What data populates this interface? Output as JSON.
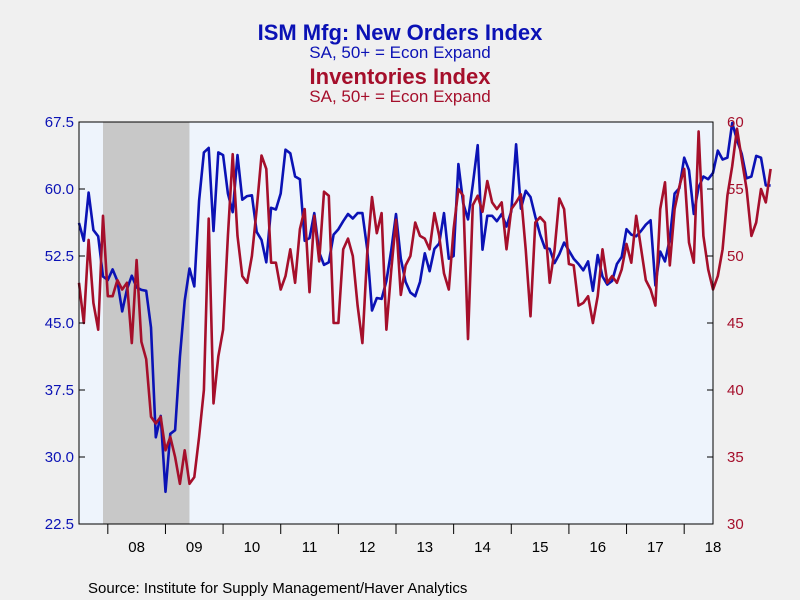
{
  "chart_data": {
    "type": "line",
    "titles": [
      {
        "text": "ISM Mfg: New Orders Index",
        "color": "#0b12b5"
      },
      {
        "text": "SA, 50+ = Econ Expand",
        "color": "#0b12b5"
      },
      {
        "text": "Inventories Index",
        "color": "#a50f2b"
      },
      {
        "text": "SA, 50+ = Econ Expand",
        "color": "#a50f2b"
      }
    ],
    "source": "Source:  Institute for Supply Management/Haver Analytics",
    "x_range": [
      2007.5,
      2018.5
    ],
    "x_tick_labels": [
      "08",
      "09",
      "10",
      "11",
      "12",
      "13",
      "14",
      "15",
      "16",
      "17",
      "18"
    ],
    "y_left": {
      "range": [
        22.5,
        67.5
      ],
      "ticks": [
        "22.5",
        "30.0",
        "37.5",
        "45.0",
        "52.5",
        "60.0",
        "67.5"
      ],
      "color": "#0b12b5"
    },
    "y_right": {
      "range": [
        30,
        60
      ],
      "ticks": [
        "30",
        "35",
        "40",
        "45",
        "50",
        "55",
        "60"
      ],
      "color": "#a50f2b"
    },
    "recession_shading": [
      {
        "start": "2007-12",
        "end": "2009-06",
        "color": "#c8c8c8"
      }
    ],
    "plot_background": "#eef4fc",
    "grid": false,
    "series": [
      {
        "name": "ISM Mfg: New Orders Index",
        "axis": "left",
        "color": "#0b12b5",
        "start": "2007-07",
        "values": [
          56.2,
          54.2,
          59.6,
          55.4,
          54.7,
          50.2,
          49.8,
          51.0,
          49.7,
          46.3,
          48.8,
          50.3,
          49.0,
          48.7,
          48.6,
          44.5,
          32.2,
          34.6,
          26.1,
          32.6,
          33.0,
          41.2,
          47.5,
          51.1,
          49.1,
          58.7,
          64.1,
          64.6,
          55.3,
          64.1,
          63.8,
          59.5,
          57.4,
          63.8,
          58.8,
          59.2,
          59.3,
          55.2,
          54.3,
          51.8,
          57.9,
          57.7,
          59.5,
          64.4,
          64.0,
          61.4,
          61.1,
          54.2,
          54.5,
          57.3,
          52.9,
          51.5,
          51.8,
          54.9,
          55.5,
          56.4,
          57.2,
          56.7,
          57.3,
          57.3,
          53.3,
          46.4,
          47.8,
          47.7,
          49.7,
          53.1,
          57.2,
          52.2,
          49.6,
          48.4,
          48.0,
          49.6,
          52.8,
          50.8,
          53.3,
          53.9,
          57.3,
          52.2,
          52.5,
          62.8,
          58.4,
          56.6,
          60.5,
          64.9,
          53.2,
          57.0,
          57.0,
          56.4,
          57.2,
          55.8,
          57.5,
          65.0,
          57.8,
          59.8,
          59.1,
          56.9,
          54.9,
          53.4,
          53.3,
          51.7,
          52.7,
          54.0,
          53.1,
          52.2,
          51.6,
          50.9,
          51.9,
          48.6,
          52.6,
          50.2,
          49.3,
          49.7,
          51.6,
          52.4,
          55.5,
          54.9,
          54.7,
          55.3,
          56.0,
          56.5,
          49.2,
          53.0,
          51.9,
          54.4,
          59.5,
          60.1,
          63.5,
          62.1,
          57.2,
          60.2,
          61.4,
          61.1,
          61.8,
          64.3,
          63.3,
          63.5,
          67.4,
          65.5,
          63.9,
          61.2,
          61.4,
          63.7,
          63.5,
          60.4,
          60.4
        ]
      },
      {
        "name": "Inventories Index",
        "axis": "right",
        "color": "#a50f2b",
        "start": "2007-07",
        "values": [
          48.0,
          45.0,
          51.2,
          46.5,
          44.5,
          53.0,
          47.0,
          47.0,
          48.2,
          47.5,
          48.0,
          43.5,
          49.7,
          43.6,
          42.3,
          38.0,
          37.5,
          38.0,
          35.5,
          36.5,
          35.0,
          33.0,
          35.5,
          33.0,
          33.5,
          36.5,
          40.0,
          52.8,
          39.0,
          42.5,
          44.5,
          51.5,
          57.6,
          51.5,
          48.5,
          48.0,
          50.0,
          53.5,
          57.5,
          56.5,
          49.5,
          49.5,
          47.5,
          48.5,
          50.5,
          48.0,
          52.0,
          53.5,
          47.3,
          53.0,
          49.6,
          54.8,
          54.5,
          45.0,
          45.0,
          50.5,
          51.3,
          50.0,
          46.3,
          43.5,
          50.2,
          54.4,
          51.7,
          53.2,
          44.5,
          48.9,
          52.7,
          47.1,
          49.3,
          50.0,
          52.5,
          51.5,
          51.3,
          50.5,
          53.2,
          51.5,
          48.7,
          47.5,
          52.0,
          55.0,
          54.5,
          43.8,
          53.8,
          54.5,
          53.3,
          55.6,
          54.0,
          53.5,
          54.0,
          50.5,
          53.5,
          54.0,
          54.6,
          50.5,
          45.5,
          52.5,
          52.9,
          52.5,
          48.0,
          50.4,
          54.3,
          53.5,
          49.4,
          49.3,
          46.3,
          46.5,
          47.0,
          45.0,
          47.0,
          50.5,
          48.0,
          48.5,
          48.0,
          49.0,
          50.9,
          49.5,
          53.0,
          50.6,
          48.2,
          47.5,
          46.3,
          53.5,
          55.5,
          49.3,
          53.5,
          55.2,
          56.5,
          51.0,
          49.5,
          59.3,
          51.5,
          49.0,
          47.5,
          48.5,
          50.5,
          54.5,
          56.7,
          59.5,
          57.2,
          55.0,
          51.5,
          52.5,
          55.0,
          54.0,
          56.5
        ]
      }
    ]
  }
}
